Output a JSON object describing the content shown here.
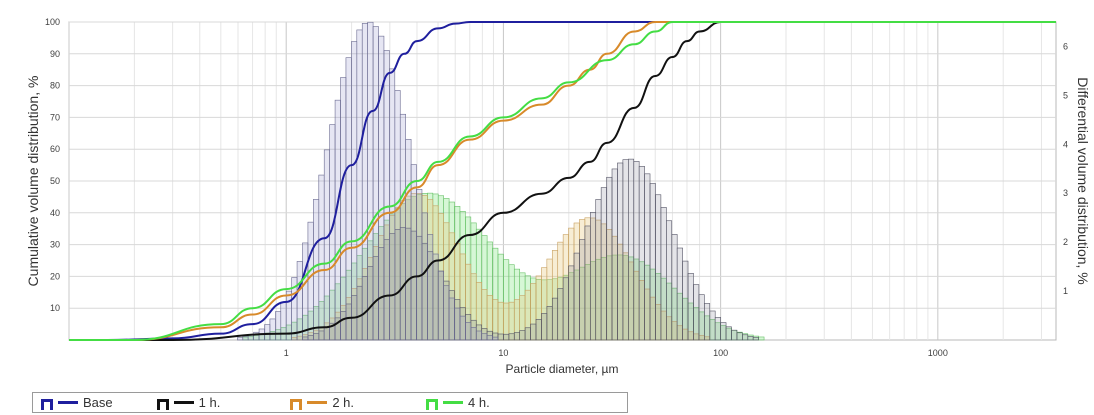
{
  "chart_data": {
    "type": "line",
    "xlabel": "Particle diameter, µm",
    "ylabel_left": "Cumulative volume distribution, %",
    "ylabel_right": "Differential volume distribution, %",
    "x_scale": "log",
    "xlim": [
      0.1,
      3500
    ],
    "ylim_left": [
      0,
      100
    ],
    "ylim_right": [
      0,
      6.5
    ],
    "grid": true,
    "legend_position": "bottom-left",
    "x_ticks": [
      "1",
      "10",
      "100",
      "1000"
    ],
    "y_ticks_left": [
      "10",
      "20",
      "30",
      "40",
      "50",
      "60",
      "70",
      "80",
      "90",
      "100"
    ],
    "y_ticks_right": [
      "1",
      "2",
      "3",
      "4",
      "5",
      "6"
    ],
    "series": [
      {
        "name": "Base",
        "color": "#1f1f9e",
        "cumulative": {
          "x": [
            0.15,
            0.3,
            0.5,
            0.7,
            1.0,
            1.5,
            2.0,
            2.5,
            3.0,
            3.5,
            4.0,
            5.0,
            6.0,
            7.0,
            8.0,
            10.0
          ],
          "y": [
            0,
            0.5,
            2,
            5,
            12,
            32,
            55,
            72,
            84,
            90,
            94,
            98,
            99.5,
            100,
            100,
            100
          ]
        },
        "differential_peak": {
          "x": 2.4,
          "y": 6.5
        }
      },
      {
        "name": "1 h.",
        "color": "#111111",
        "cumulative": {
          "x": [
            0.3,
            1.0,
            1.5,
            2.0,
            3.0,
            4.0,
            5.0,
            7.0,
            10.0,
            15.0,
            20.0,
            25.0,
            30.0,
            40.0,
            50.0,
            60.0,
            70.0,
            80.0,
            100.0,
            150.0
          ],
          "y": [
            0,
            2,
            4,
            7,
            14,
            20,
            25,
            33,
            40,
            46,
            51,
            56,
            62,
            73,
            83,
            89,
            94,
            97,
            100,
            100
          ]
        },
        "differential_peak": {
          "x": 38,
          "y": 3.7
        }
      },
      {
        "name": "2 h.",
        "color": "#d88a2a",
        "cumulative": {
          "x": [
            0.2,
            0.5,
            0.7,
            1.0,
            1.5,
            2.0,
            3.0,
            4.0,
            5.0,
            7.0,
            10.0,
            15.0,
            20.0,
            25.0,
            30.0,
            40.0,
            50.0,
            60.0
          ],
          "y": [
            0,
            4,
            8,
            14,
            22,
            29,
            40,
            48,
            55,
            63,
            69,
            74,
            80,
            85,
            90,
            97,
            100,
            100
          ]
        },
        "differential_peak": {
          "x": 25,
          "y": 2.5
        }
      },
      {
        "name": "4 h.",
        "color": "#44dd44",
        "cumulative": {
          "x": [
            0.2,
            0.5,
            0.7,
            1.0,
            1.5,
            2.0,
            3.0,
            4.0,
            5.0,
            7.0,
            10.0,
            15.0,
            20.0,
            30.0,
            40.0,
            50.0,
            60.0,
            70.0
          ],
          "y": [
            0,
            5,
            10,
            16,
            24,
            31,
            42,
            50,
            56,
            64,
            70,
            76,
            81,
            88,
            93,
            97,
            100,
            100
          ]
        },
        "differential_peak": {
          "x": 4.5,
          "y": 3.0
        }
      }
    ]
  }
}
